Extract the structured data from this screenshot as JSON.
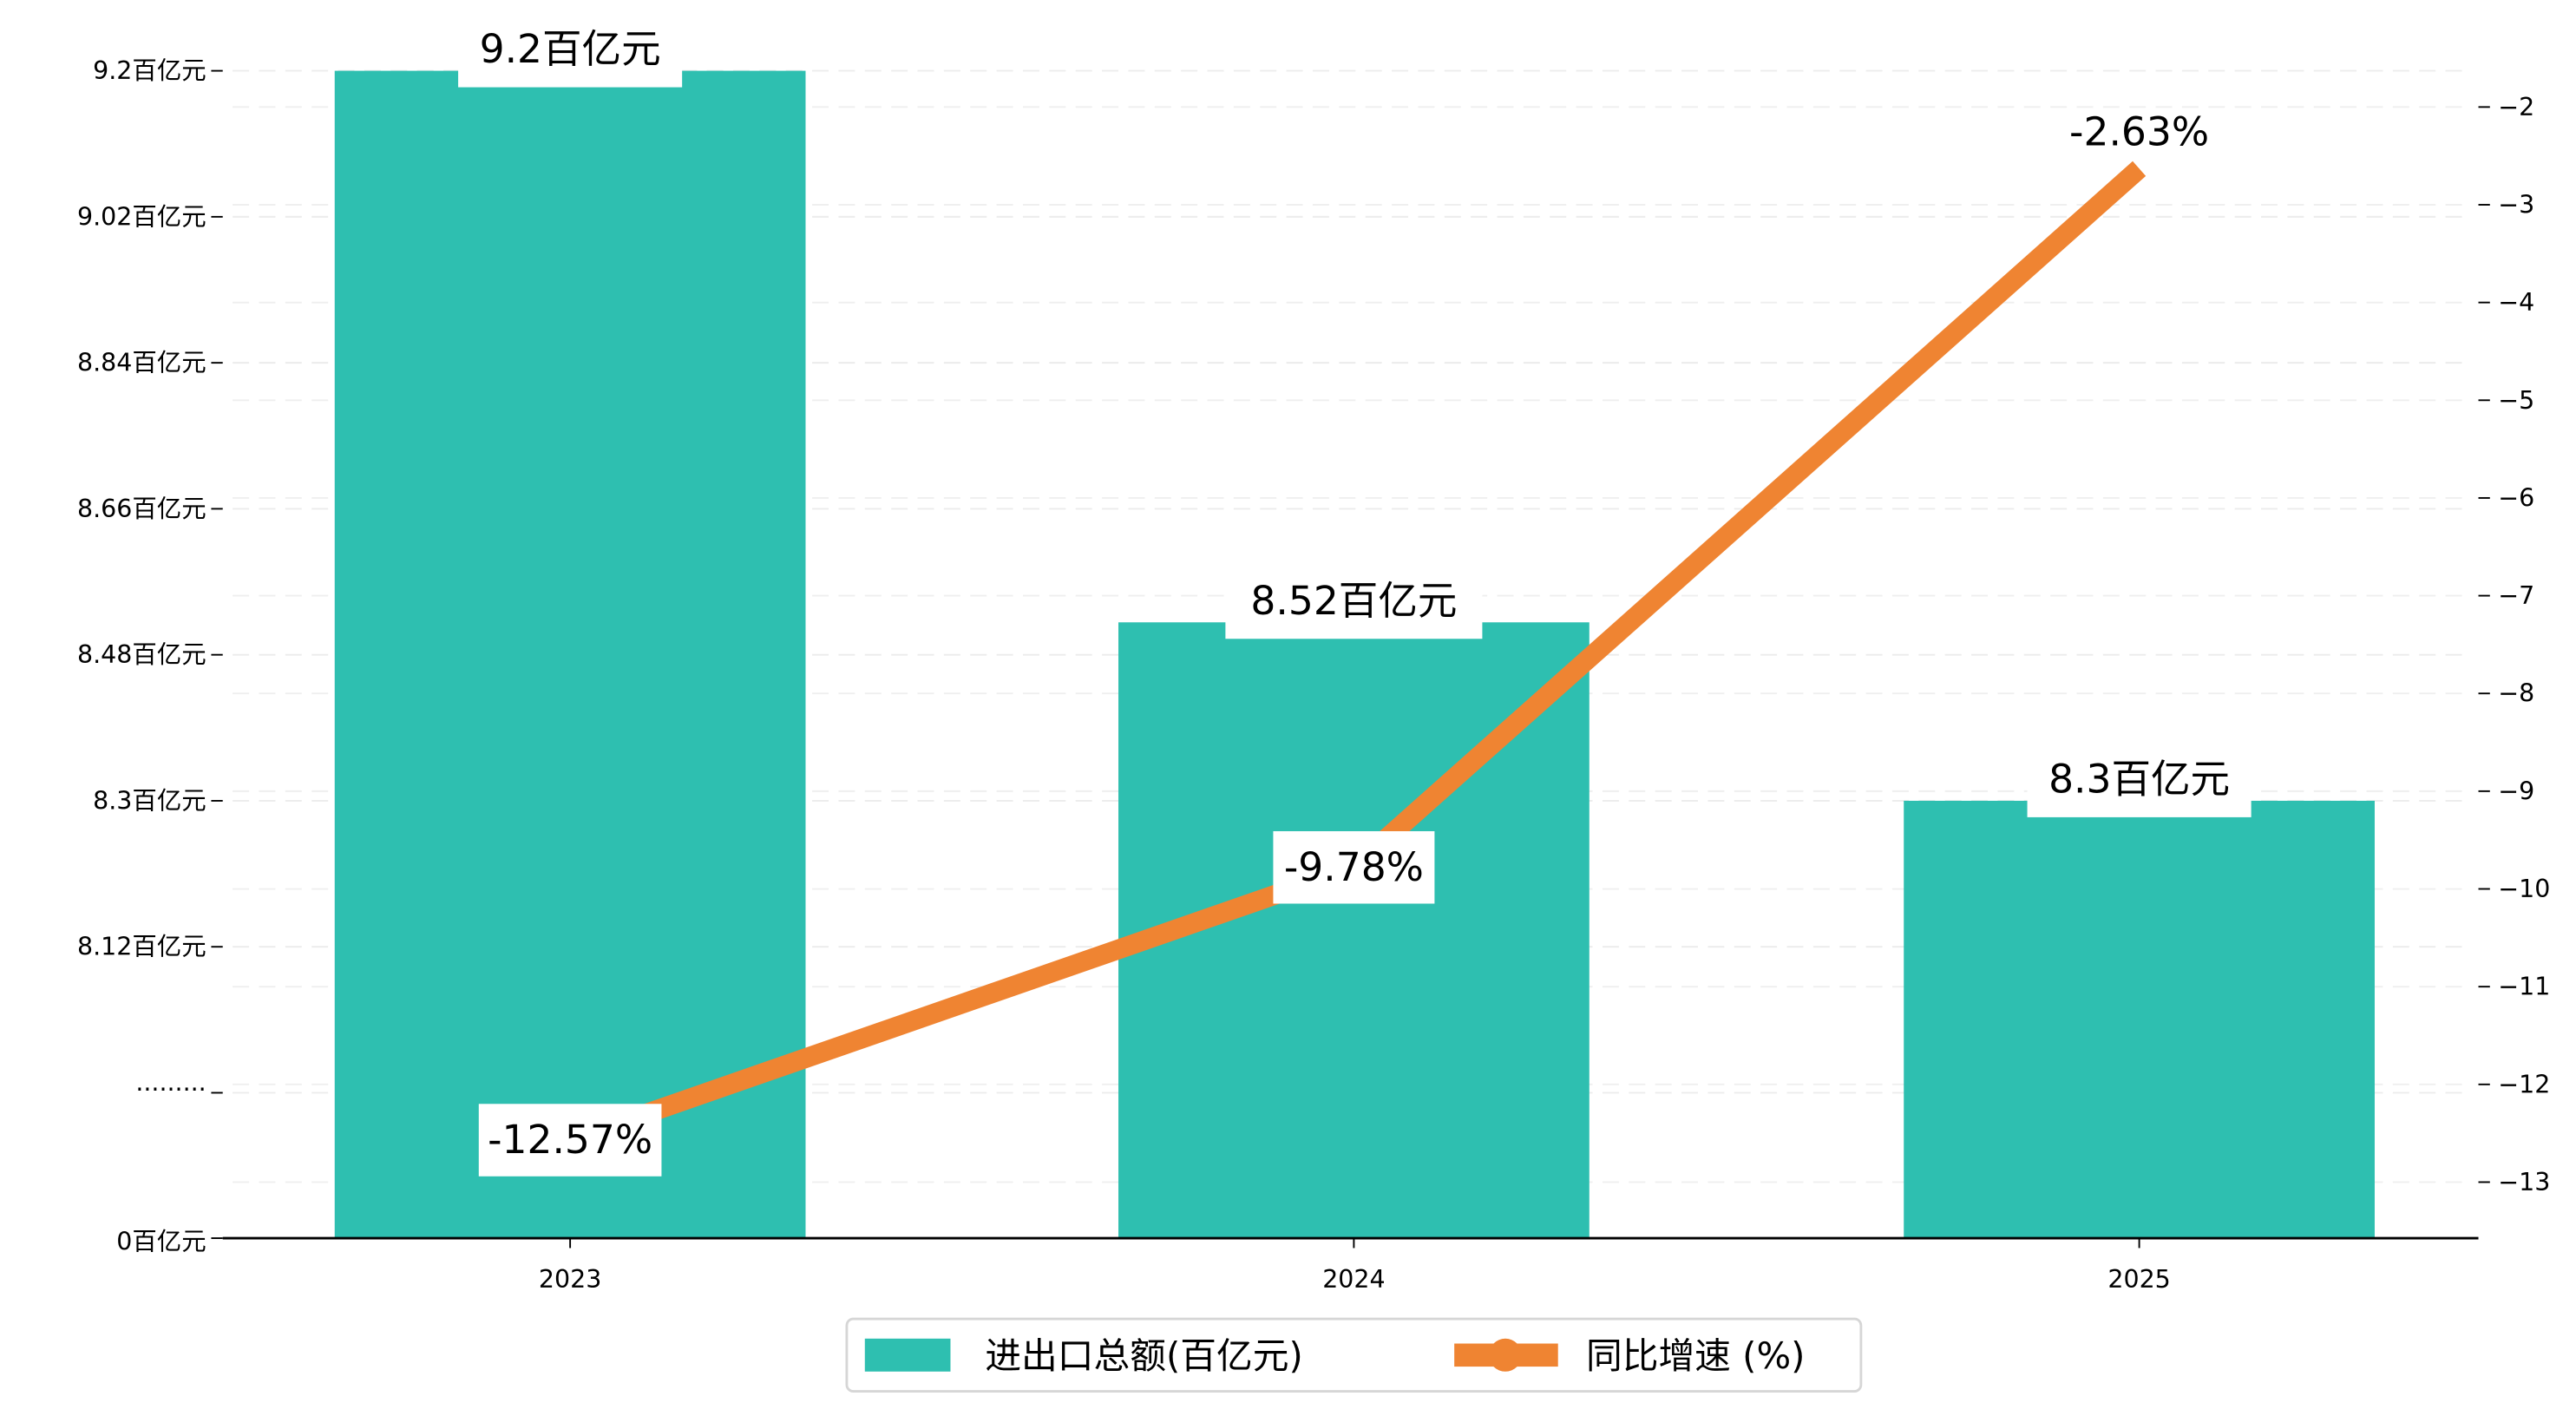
{
  "chart_data": {
    "type": "bar+line",
    "categories": [
      "2023",
      "2024",
      "2025"
    ],
    "series": [
      {
        "name": "进出口总额(百亿元)",
        "type": "bar",
        "axis": "left",
        "values": [
          9.2,
          8.52,
          8.3
        ],
        "labels": [
          "9.2百亿元",
          "8.52百亿元",
          "8.3百亿元"
        ],
        "color": "#2ebfb0"
      },
      {
        "name": "同比增速 (%)",
        "type": "line",
        "axis": "right",
        "values": [
          -12.57,
          -9.78,
          -2.63
        ],
        "labels": [
          "-12.57%",
          "-9.78%",
          "-2.63%"
        ],
        "color": "#ef8432"
      }
    ],
    "left_axis": {
      "broken": true,
      "ticks": [
        9.2,
        9.02,
        8.84,
        8.66,
        8.48,
        8.3,
        8.12
      ],
      "tick_labels": [
        "9.2百亿元",
        "9.02百亿元",
        "8.84百亿元",
        "8.66百亿元",
        "8.48百亿元",
        "8.3百亿元",
        "8.12百亿元"
      ],
      "break_label": "·········",
      "zero_label": "0百亿元"
    },
    "right_axis": {
      "ticks": [
        -2,
        -3,
        -4,
        -5,
        -6,
        -7,
        -8,
        -9,
        -10,
        -11,
        -12,
        -13
      ],
      "tick_labels": [
        "−2",
        "−3",
        "−4",
        "−5",
        "−6",
        "−7",
        "−8",
        "−9",
        "−10",
        "−11",
        "−12",
        "−13"
      ],
      "ylim": [
        -13.6,
        -1.6
      ]
    },
    "grid": true,
    "legend": {
      "position": "bottom-center",
      "labels": [
        "进出口总额(百亿元)",
        "同比增速 (%)"
      ]
    }
  }
}
